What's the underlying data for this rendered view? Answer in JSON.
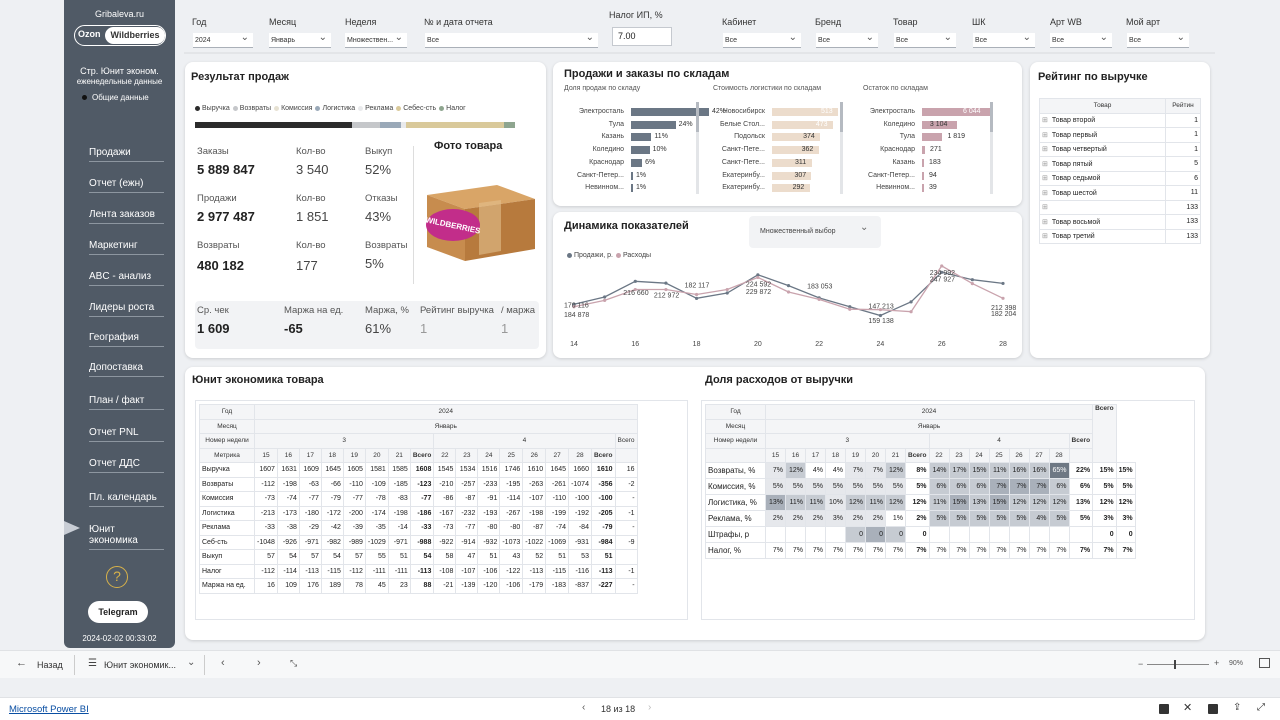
{
  "sidebar": {
    "site": "Gribaleva.ru",
    "toggle_left": "Ozon",
    "toggle_right": "Wildberries",
    "desc1": "Стр. Юнит эконом.",
    "desc2": "еженедельные данные",
    "radio": "Общие данные",
    "help": "?",
    "telegram": "Telegram",
    "timestamp": "2024-02-02 00:33:02",
    "nav": [
      "Продажи",
      "Отчет (ежн)",
      "Лента заказов",
      "Маркетинг",
      "ABC - анализ",
      "Лидеры роста",
      "География",
      "Допоставка",
      "План / факт",
      "Отчет PNL",
      "Отчет ДДС",
      "Пл. календарь",
      "Юнит экономика"
    ]
  },
  "filters": [
    {
      "label": "Год",
      "value": "2024"
    },
    {
      "label": "Месяц",
      "value": "Январь"
    },
    {
      "label": "Неделя",
      "value": "Множествен..."
    },
    {
      "label": "№ и дата отчета",
      "value": "Все"
    },
    {
      "label": "Кабинет",
      "value": "Все"
    },
    {
      "label": "Бренд",
      "value": "Все"
    },
    {
      "label": "Товар",
      "value": "Все"
    },
    {
      "label": "ШК",
      "value": "Все"
    },
    {
      "label": "Арт WB",
      "value": "Все"
    },
    {
      "label": "Мой арт",
      "value": "Все"
    }
  ],
  "tax": {
    "label": "Налог ИП, %",
    "value": "7.00"
  },
  "sales_result": {
    "title": "Результат продаж",
    "legend": [
      "Выручка",
      "Возвраты",
      "Комиссия",
      "Логистика",
      "Реклама",
      "Себес-сть",
      "Налог"
    ],
    "legend_colors": [
      "#2b2b2b",
      "#c5c7ca",
      "#e6e1d2",
      "#9aa9b8",
      "#e9eaec",
      "#d9c99a",
      "#8ea58f"
    ],
    "orders_label": "Заказы",
    "orders": "5 889 847",
    "qty_label": "Кол-во",
    "orders_qty": "3 540",
    "buyout_label": "Выкуп",
    "buyout": "52%",
    "sales_label": "Продажи",
    "sales": "2 977 487",
    "sales_qty": "1 851",
    "refusals_label": "Отказы",
    "refusals": "43%",
    "returns_label": "Возвраты",
    "returns": "480 182",
    "returns_qty": "177",
    "returns_pct_label": "Возвраты",
    "returns_pct": "5%",
    "photo_title": "Фото товара",
    "photo_logo": "WILDBERRIES",
    "avg_check_label": "Ср. чек",
    "avg_check": "1 609",
    "margin_unit_label": "Маржа на ед.",
    "margin_unit": "-65",
    "margin_pct_label": "Маржа, %",
    "margin_pct": "61%",
    "rating_label": "Рейтинг выручка",
    "rating": "1",
    "rating_margin_label": "/ маржа",
    "rating_margin": "1"
  },
  "warehouses": {
    "title": "Продажи и заказы по складам",
    "share": {
      "title": "Доля продаж по складу",
      "items": [
        {
          "name": "Электросталь",
          "value": "42%",
          "v": 42
        },
        {
          "name": "Тула",
          "value": "24%",
          "v": 24
        },
        {
          "name": "Казань",
          "value": "11%",
          "v": 11
        },
        {
          "name": "Коледино",
          "value": "10%",
          "v": 10
        },
        {
          "name": "Краснодар",
          "value": "6%",
          "v": 6
        },
        {
          "name": "Санкт-Петер...",
          "value": "1%",
          "v": 1
        },
        {
          "name": "Невинном...",
          "value": "1%",
          "v": 1
        }
      ]
    },
    "logistics": {
      "title": "Стоимость логистики по складам",
      "items": [
        {
          "name": "Новосибирск",
          "value": "513",
          "v": 513
        },
        {
          "name": "Белые Стол...",
          "value": "473",
          "v": 473
        },
        {
          "name": "Подольск",
          "value": "374",
          "v": 374
        },
        {
          "name": "Санкт-Пете...",
          "value": "362",
          "v": 362
        },
        {
          "name": "Санкт-Пете...",
          "value": "311",
          "v": 311
        },
        {
          "name": "Екатеринбу...",
          "value": "307",
          "v": 307
        },
        {
          "name": "Екатеринбу...",
          "value": "292",
          "v": 292
        }
      ]
    },
    "stock": {
      "title": "Остаток по складам",
      "items": [
        {
          "name": "Электросталь",
          "value": "6 044",
          "v": 6044
        },
        {
          "name": "Коледино",
          "value": "3 104",
          "v": 3104
        },
        {
          "name": "Тула",
          "value": "1 819",
          "v": 1819
        },
        {
          "name": "Краснодар",
          "value": "271",
          "v": 271
        },
        {
          "name": "Казань",
          "value": "183",
          "v": 183
        },
        {
          "name": "Санкт-Петер...",
          "value": "94",
          "v": 94
        },
        {
          "name": "Невинном...",
          "value": "39",
          "v": 39
        }
      ]
    }
  },
  "dynamics": {
    "title": "Динамика показателей",
    "dropdown": "Множественный выбор"
  },
  "chart_data": {
    "type": "line",
    "x": [
      14,
      15,
      16,
      17,
      18,
      19,
      20,
      21,
      22,
      23,
      24,
      25,
      26,
      27,
      28
    ],
    "xticks": [
      "14",
      "16",
      "18",
      "20",
      "22",
      "24",
      "26",
      "28"
    ],
    "series": [
      {
        "name": "Продажи, р.",
        "color": "#6b7785",
        "values": [
          170116,
          184878,
          216660,
          212972,
          182117,
          193000,
          229872,
          208000,
          183053,
          165000,
          147213,
          175000,
          234992,
          220000,
          212398
        ]
      },
      {
        "name": "Расходы",
        "color": "#c9a3ad",
        "values": [
          165000,
          178000,
          200000,
          200000,
          190000,
          200000,
          224592,
          195000,
          180000,
          160000,
          159138,
          155000,
          247927,
          212000,
          182204
        ]
      }
    ],
    "labels": [
      {
        "x": 14,
        "text": "170 116",
        "y": 170116
      },
      {
        "x": 14,
        "text": "184 878",
        "y": 150000
      },
      {
        "x": 16,
        "text": "216 660",
        "y": 195000
      },
      {
        "x": 17,
        "text": "212 972",
        "y": 190000
      },
      {
        "x": 18,
        "text": "182 117",
        "y": 210000
      },
      {
        "x": 20,
        "text": "224 592",
        "y": 212000
      },
      {
        "x": 20,
        "text": "229 872",
        "y": 197000
      },
      {
        "x": 22,
        "text": "183 053",
        "y": 208000
      },
      {
        "x": 24,
        "text": "147 213",
        "y": 168000
      },
      {
        "x": 24,
        "text": "159 138",
        "y": 138000
      },
      {
        "x": 26,
        "text": "234 992",
        "y": 236000
      },
      {
        "x": 26,
        "text": "247 927",
        "y": 222000
      },
      {
        "x": 28,
        "text": "212 398",
        "y": 165000
      },
      {
        "x": 28,
        "text": "182 204",
        "y": 152000
      }
    ],
    "ylim": [
      130000,
      260000
    ]
  },
  "rating": {
    "title": "Рейтинг по выручке",
    "col1": "Товар",
    "col2": "Рейтин",
    "rows": [
      [
        "Товар второй",
        "1"
      ],
      [
        "Товар первый",
        "1"
      ],
      [
        "Товар четвертый",
        "1"
      ],
      [
        "Товар пятый",
        "5"
      ],
      [
        "Товар седьмой",
        "6"
      ],
      [
        "Товар шестой",
        "11"
      ],
      [
        "",
        "133"
      ],
      [
        "Товар восьмой",
        "133"
      ],
      [
        "Товар третий",
        "133"
      ]
    ]
  },
  "unit": {
    "title": "Юнит экономика товара",
    "h_year": "Год",
    "h_month": "Месяц",
    "h_week": "Номер недели",
    "h_metric": "Метрика",
    "year": "2024",
    "month": "Январь",
    "w3": "3",
    "w4": "4",
    "total": "Всего",
    "days3": [
      "15",
      "16",
      "17",
      "18",
      "19",
      "20",
      "21"
    ],
    "days4": [
      "22",
      "23",
      "24",
      "25",
      "26",
      "27",
      "28"
    ],
    "rows": [
      [
        "Выручка",
        "1607",
        "1631",
        "1609",
        "1645",
        "1605",
        "1581",
        "1585",
        "1608",
        "1545",
        "1534",
        "1516",
        "1746",
        "1610",
        "1645",
        "1660",
        "1610",
        "16"
      ],
      [
        "Возвраты",
        "-112",
        "-198",
        "-63",
        "-66",
        "-110",
        "-109",
        "-185",
        "-123",
        "-210",
        "-257",
        "-233",
        "-195",
        "-263",
        "-261",
        "-1074",
        "-356",
        "-2"
      ],
      [
        "Комиссия",
        "-73",
        "-74",
        "-77",
        "-79",
        "-77",
        "-78",
        "-83",
        "-77",
        "-86",
        "-87",
        "-91",
        "-114",
        "-107",
        "-110",
        "-100",
        "-100",
        "-"
      ],
      [
        "Логистика",
        "-213",
        "-173",
        "-180",
        "-172",
        "-200",
        "-174",
        "-198",
        "-186",
        "-167",
        "-232",
        "-193",
        "-267",
        "-198",
        "-199",
        "-192",
        "-205",
        "-1"
      ],
      [
        "Реклама",
        "-33",
        "-38",
        "-29",
        "-42",
        "-39",
        "-35",
        "-14",
        "-33",
        "-73",
        "-77",
        "-80",
        "-80",
        "-87",
        "-74",
        "-84",
        "-79",
        "-"
      ],
      [
        "Себ-сть",
        "-1048",
        "-926",
        "-971",
        "-982",
        "-989",
        "-1029",
        "-971",
        "-988",
        "-922",
        "-914",
        "-932",
        "-1073",
        "-1022",
        "-1069",
        "-931",
        "-984",
        "-9"
      ],
      [
        "Выкуп",
        "57",
        "54",
        "57",
        "54",
        "57",
        "55",
        "51",
        "54",
        "58",
        "47",
        "51",
        "43",
        "52",
        "51",
        "53",
        "51",
        ""
      ],
      [
        "Налог",
        "-112",
        "-114",
        "-113",
        "-115",
        "-112",
        "-111",
        "-111",
        "-113",
        "-108",
        "-107",
        "-106",
        "-122",
        "-113",
        "-115",
        "-116",
        "-113",
        "-1"
      ],
      [
        "Маржа на ед.",
        "16",
        "109",
        "176",
        "189",
        "78",
        "45",
        "23",
        "88",
        "-21",
        "-139",
        "-120",
        "-106",
        "-179",
        "-183",
        "-837",
        "-227",
        "-"
      ]
    ]
  },
  "expenses": {
    "title": "Доля расходов от выручки",
    "rows": [
      {
        "name": "Возвраты, %",
        "v": [
          "7%",
          "12%",
          "4%",
          "4%",
          "7%",
          "7%",
          "12%",
          "8%",
          "14%",
          "17%",
          "15%",
          "11%",
          "16%",
          "16%",
          "65%",
          "22%",
          "15%",
          "15%"
        ],
        "s": [
          1,
          2,
          0,
          0,
          1,
          1,
          2,
          0,
          2,
          2,
          2,
          2,
          2,
          2,
          4,
          0,
          0,
          0
        ]
      },
      {
        "name": "Комиссия, %",
        "v": [
          "5%",
          "5%",
          "5%",
          "5%",
          "5%",
          "5%",
          "5%",
          "5%",
          "6%",
          "6%",
          "6%",
          "7%",
          "7%",
          "7%",
          "6%",
          "6%",
          "5%",
          "5%"
        ],
        "s": [
          1,
          1,
          1,
          1,
          1,
          1,
          1,
          0,
          2,
          2,
          2,
          3,
          3,
          3,
          2,
          0,
          0,
          0
        ]
      },
      {
        "name": "Логистика, %",
        "v": [
          "13%",
          "11%",
          "11%",
          "10%",
          "12%",
          "11%",
          "12%",
          "12%",
          "11%",
          "15%",
          "13%",
          "15%",
          "12%",
          "12%",
          "12%",
          "13%",
          "12%",
          "12%"
        ],
        "s": [
          3,
          2,
          2,
          1,
          2,
          2,
          2,
          0,
          2,
          3,
          2,
          3,
          2,
          2,
          2,
          0,
          0,
          0
        ]
      },
      {
        "name": "Реклама, %",
        "v": [
          "2%",
          "2%",
          "2%",
          "3%",
          "2%",
          "2%",
          "1%",
          "2%",
          "5%",
          "5%",
          "5%",
          "5%",
          "5%",
          "4%",
          "5%",
          "5%",
          "3%",
          "3%"
        ],
        "s": [
          1,
          1,
          1,
          1,
          1,
          1,
          0,
          0,
          2,
          2,
          2,
          2,
          2,
          2,
          2,
          0,
          0,
          0
        ]
      },
      {
        "name": "Штрафы, р",
        "v": [
          "",
          "",
          "",
          "",
          "0",
          "0",
          "0",
          "0",
          "",
          "",
          "",
          "",
          "",
          "",
          "",
          "",
          "0",
          "0"
        ],
        "s": [
          0,
          0,
          0,
          0,
          2,
          3,
          2,
          0,
          0,
          0,
          0,
          0,
          0,
          0,
          0,
          0,
          0,
          0
        ]
      },
      {
        "name": "Налог, %",
        "v": [
          "7%",
          "7%",
          "7%",
          "7%",
          "7%",
          "7%",
          "7%",
          "7%",
          "7%",
          "7%",
          "7%",
          "7%",
          "7%",
          "7%",
          "7%",
          "7%",
          "7%",
          "7%"
        ],
        "s": [
          0,
          0,
          0,
          0,
          0,
          0,
          0,
          0,
          0,
          0,
          0,
          0,
          0,
          0,
          0,
          0,
          0,
          0
        ]
      }
    ]
  },
  "bottom": {
    "back": "Назад",
    "page_menu": "Юнит экономик...",
    "page_info": "18 из 18",
    "zoom": "90%"
  },
  "footer": {
    "brand": "Microsoft Power BI"
  }
}
